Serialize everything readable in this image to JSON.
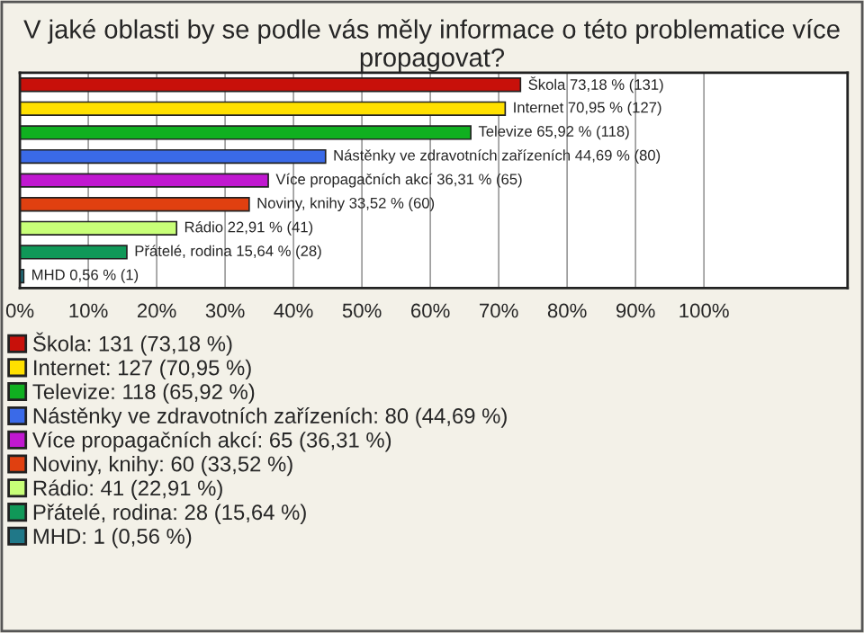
{
  "chart_data": {
    "type": "bar",
    "orientation": "horizontal",
    "title": "V jaké oblasti by se podle vás měly informace o této problematice více propagovat?",
    "categories": [
      null,
      null,
      null,
      null,
      null,
      null,
      null,
      null,
      null
    ],
    "series": [
      {
        "name": "Škola: 131 (73,18 %)",
        "color": "#c8100a",
        "values": [
          73.18,
          null,
          null,
          null,
          null,
          null,
          null,
          null,
          null
        ],
        "value_labels": [
          "Škola 73,18 % (131)",
          null,
          null,
          null,
          null,
          null,
          null,
          null,
          null
        ]
      },
      {
        "name": "Internet: 127 (70,95 %)",
        "color": "#ffe000",
        "values": [
          null,
          70.95,
          null,
          null,
          null,
          null,
          null,
          null,
          null
        ],
        "value_labels": [
          null,
          "Internet 70,95 % (127)",
          null,
          null,
          null,
          null,
          null,
          null,
          null
        ]
      },
      {
        "name": "Televize: 118 (65,92 %)",
        "color": "#10b020",
        "values": [
          null,
          null,
          65.92,
          null,
          null,
          null,
          null,
          null,
          null
        ],
        "value_labels": [
          null,
          null,
          "Televize 65,92 % (118)",
          null,
          null,
          null,
          null,
          null,
          null
        ]
      },
      {
        "name": "Nástěnky ve zdravotních zařízeních: 80 (44,69 %)",
        "color": "#3a6ae8",
        "values": [
          null,
          null,
          null,
          44.69,
          null,
          null,
          null,
          null,
          null
        ],
        "value_labels": [
          null,
          null,
          null,
          "Nástěnky ve zdravotních zařízeních 44,69 % (80)",
          null,
          null,
          null,
          null,
          null
        ]
      },
      {
        "name": "Více propagačních akcí: 65 (36,31 %)",
        "color": "#c018d0",
        "values": [
          null,
          null,
          null,
          null,
          36.31,
          null,
          null,
          null,
          null
        ],
        "value_labels": [
          null,
          null,
          null,
          null,
          "Více propagačních akcí 36,31 % (65)",
          null,
          null,
          null,
          null
        ]
      },
      {
        "name": "Noviny, knihy: 60 (33,52 %)",
        "color": "#e04010",
        "values": [
          null,
          null,
          null,
          null,
          null,
          33.52,
          null,
          null,
          null
        ],
        "value_labels": [
          null,
          null,
          null,
          null,
          null,
          "Noviny, knihy 33,52 % (60)",
          null,
          null,
          null
        ]
      },
      {
        "name": "Rádio: 41 (22,91 %)",
        "color": "#c8ff78",
        "values": [
          null,
          null,
          null,
          null,
          null,
          null,
          22.91,
          null,
          null
        ],
        "value_labels": [
          null,
          null,
          null,
          null,
          null,
          null,
          "Rádio 22,91 % (41)",
          null,
          null
        ]
      },
      {
        "name": "Přátelé, rodina: 28 (15,64 %)",
        "color": "#109858",
        "values": [
          null,
          null,
          null,
          null,
          null,
          null,
          null,
          15.64,
          null
        ],
        "value_labels": [
          null,
          null,
          null,
          null,
          null,
          null,
          null,
          "Přátelé, rodina 15,64 % (28)",
          null
        ]
      },
      {
        "name": "MHD: 1 (0,56 %)",
        "color": "#207888",
        "values": [
          null,
          null,
          null,
          null,
          null,
          null,
          null,
          null,
          0.56
        ],
        "value_labels": [
          null,
          null,
          null,
          null,
          null,
          null,
          null,
          null,
          "MHD 0,56 % (1)"
        ]
      }
    ],
    "xlim": [
      0,
      121
    ],
    "xticks": [
      {
        "value": 0,
        "label": "0%"
      },
      {
        "value": 10,
        "label": "10%"
      },
      {
        "value": 20,
        "label": "20%"
      },
      {
        "value": 30,
        "label": "30%"
      },
      {
        "value": 40,
        "label": "40%"
      },
      {
        "value": 50,
        "label": "50%"
      },
      {
        "value": 60,
        "label": "60%"
      },
      {
        "value": 70,
        "label": "70%"
      },
      {
        "value": 80,
        "label": "80%"
      },
      {
        "value": 90,
        "label": "90%"
      },
      {
        "value": 100,
        "label": "100%"
      }
    ],
    "grid": "x",
    "legend": "bottom"
  }
}
